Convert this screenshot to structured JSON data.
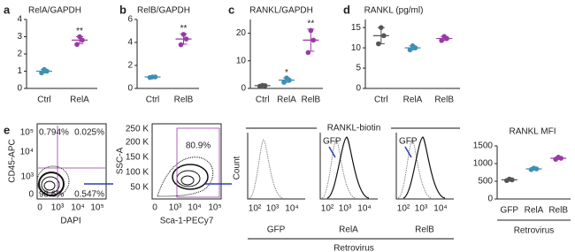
{
  "chart_data": [
    {
      "type": "dot",
      "panel_label": "a",
      "title": "RelA/GAPDH",
      "ylim": [
        0,
        4
      ],
      "yticks": [
        0,
        1,
        2,
        3,
        4
      ],
      "groups": [
        {
          "name": "Ctrl",
          "color": "#3d8fb5",
          "values": [
            0.9,
            1.0,
            1.1
          ],
          "mean": 1.0,
          "sd": 0.1
        },
        {
          "name": "RelA",
          "color": "#9a3aa5",
          "values": [
            2.55,
            2.8,
            3.0
          ],
          "mean": 2.8,
          "sd": 0.2,
          "annotation": "**"
        }
      ]
    },
    {
      "type": "dot",
      "panel_label": "b",
      "title": "RelB/GAPDH",
      "ylim": [
        0,
        6
      ],
      "yticks": [
        0,
        2,
        4,
        6
      ],
      "groups": [
        {
          "name": "Ctrl",
          "color": "#3d8fb5",
          "values": [
            0.95,
            1.0,
            1.0
          ],
          "mean": 1.0,
          "sd": 0.05
        },
        {
          "name": "RelB",
          "color": "#9a3aa5",
          "values": [
            3.8,
            4.3,
            4.7
          ],
          "mean": 4.3,
          "sd": 0.45,
          "annotation": "**"
        }
      ]
    },
    {
      "type": "dot",
      "panel_label": "c",
      "title": "RANKL/GAPDH",
      "ylim": [
        0,
        25
      ],
      "yticks": [
        0,
        10,
        20
      ],
      "groups": [
        {
          "name": "Ctrl",
          "color": "#555555",
          "values": [
            0.8,
            1.0,
            1.1
          ],
          "mean": 1.0,
          "sd": 0.2
        },
        {
          "name": "RelA",
          "color": "#3d8fb5",
          "values": [
            2.2,
            3.0,
            3.8
          ],
          "mean": 3.0,
          "sd": 0.8,
          "annotation": "*"
        },
        {
          "name": "RelB",
          "color": "#9a3aa5",
          "values": [
            13,
            17.5,
            21
          ],
          "mean": 17.5,
          "sd": 4,
          "annotation": "**"
        }
      ]
    },
    {
      "type": "dot",
      "panel_label": "d",
      "title": "RANKL (pg/ml)",
      "ylim": [
        0,
        17
      ],
      "yticks": [
        0,
        5,
        10,
        15
      ],
      "groups": [
        {
          "name": "Ctrl",
          "color": "#555555",
          "values": [
            11,
            13,
            15
          ],
          "mean": 13,
          "sd": 2
        },
        {
          "name": "RelA",
          "color": "#3d8fb5",
          "values": [
            9.5,
            10,
            10.5
          ],
          "mean": 10,
          "sd": 0.5
        },
        {
          "name": "RelB",
          "color": "#9a3aa5",
          "values": [
            11.8,
            12.3,
            12.8
          ],
          "mean": 12.3,
          "sd": 0.5
        }
      ]
    },
    {
      "type": "dot",
      "title": "RANKL MFI",
      "ylim": [
        0,
        1500
      ],
      "yticks": [
        0,
        500,
        1000,
        1500
      ],
      "xlabel": "Retrovirus",
      "groups": [
        {
          "name": "GFP",
          "color": "#555555",
          "values": [
            520,
            540,
            560
          ],
          "mean": 540,
          "sd": 20
        },
        {
          "name": "RelA",
          "color": "#3d8fb5",
          "values": [
            830,
            850,
            870
          ],
          "mean": 850,
          "sd": 20
        },
        {
          "name": "RelB",
          "color": "#9a3aa5",
          "values": [
            1120,
            1150,
            1180
          ],
          "mean": 1150,
          "sd": 30
        }
      ]
    }
  ],
  "flow": {
    "panel_label": "e",
    "plot1": {
      "ylabel": "CD45-APC",
      "xlabel": "DAPI",
      "yticks": [
        "0",
        "10³",
        "10⁴",
        "10⁵"
      ],
      "xticks": [
        "0",
        "10³",
        "10⁴",
        "10⁵"
      ],
      "quadrants": [
        "0.794%",
        "0.025%",
        "98.6%",
        "0.547%"
      ]
    },
    "plot2": {
      "ylabel": "SSC-A",
      "xlabel": "Sca-1-PECy7",
      "yticks": [
        "50 K",
        "100 K",
        "150 K",
        "200 K",
        "250 K"
      ],
      "xticks": [
        "0",
        "10³",
        "10⁴",
        "10⁵"
      ],
      "gate": "80.9%"
    },
    "histograms": {
      "title": "RANKL-biotin",
      "ylabel": "Count",
      "xticks": [
        "10²",
        "10³",
        "10⁴"
      ],
      "panels": [
        {
          "name": "GFP"
        },
        {
          "name": "RelA",
          "control": "GFP"
        },
        {
          "name": "RelB",
          "control": "GFP"
        }
      ],
      "xlabel": "Retrovirus"
    }
  }
}
